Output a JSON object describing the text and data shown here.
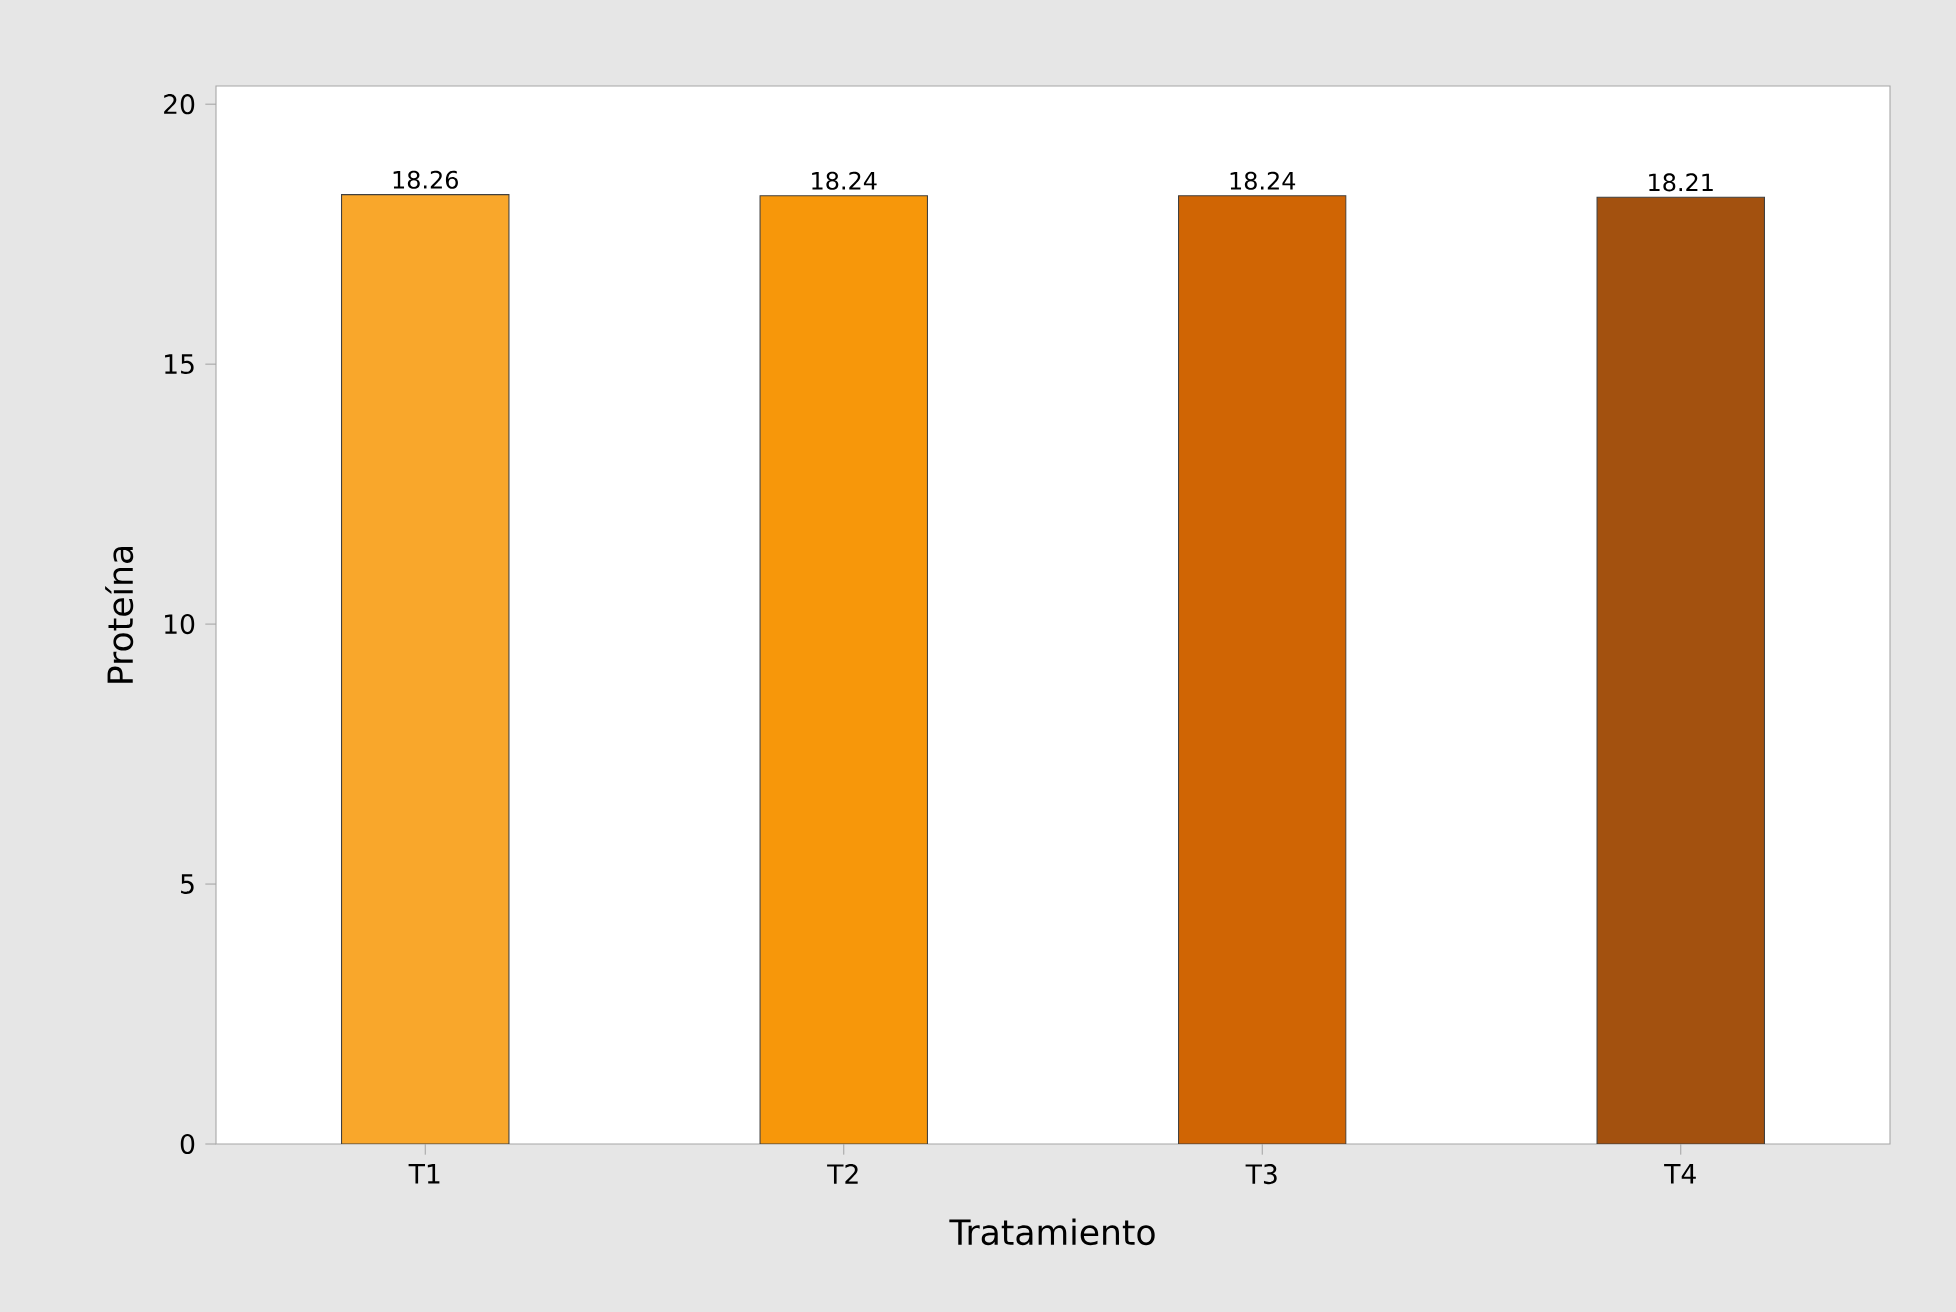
{
  "chart_data": {
    "type": "bar",
    "xlabel": "Tratamiento",
    "ylabel": "Proteína",
    "categories": [
      "T1",
      "T2",
      "T3",
      "T4"
    ],
    "values": [
      18.26,
      18.24,
      18.24,
      18.21
    ],
    "colors": [
      "#f9a72b",
      "#f7970a",
      "#d06504",
      "#a3510f"
    ],
    "ylim": [
      0,
      20.35
    ],
    "yticks": [
      0,
      5,
      10,
      15,
      20
    ],
    "data_labels": true,
    "grid": false
  }
}
